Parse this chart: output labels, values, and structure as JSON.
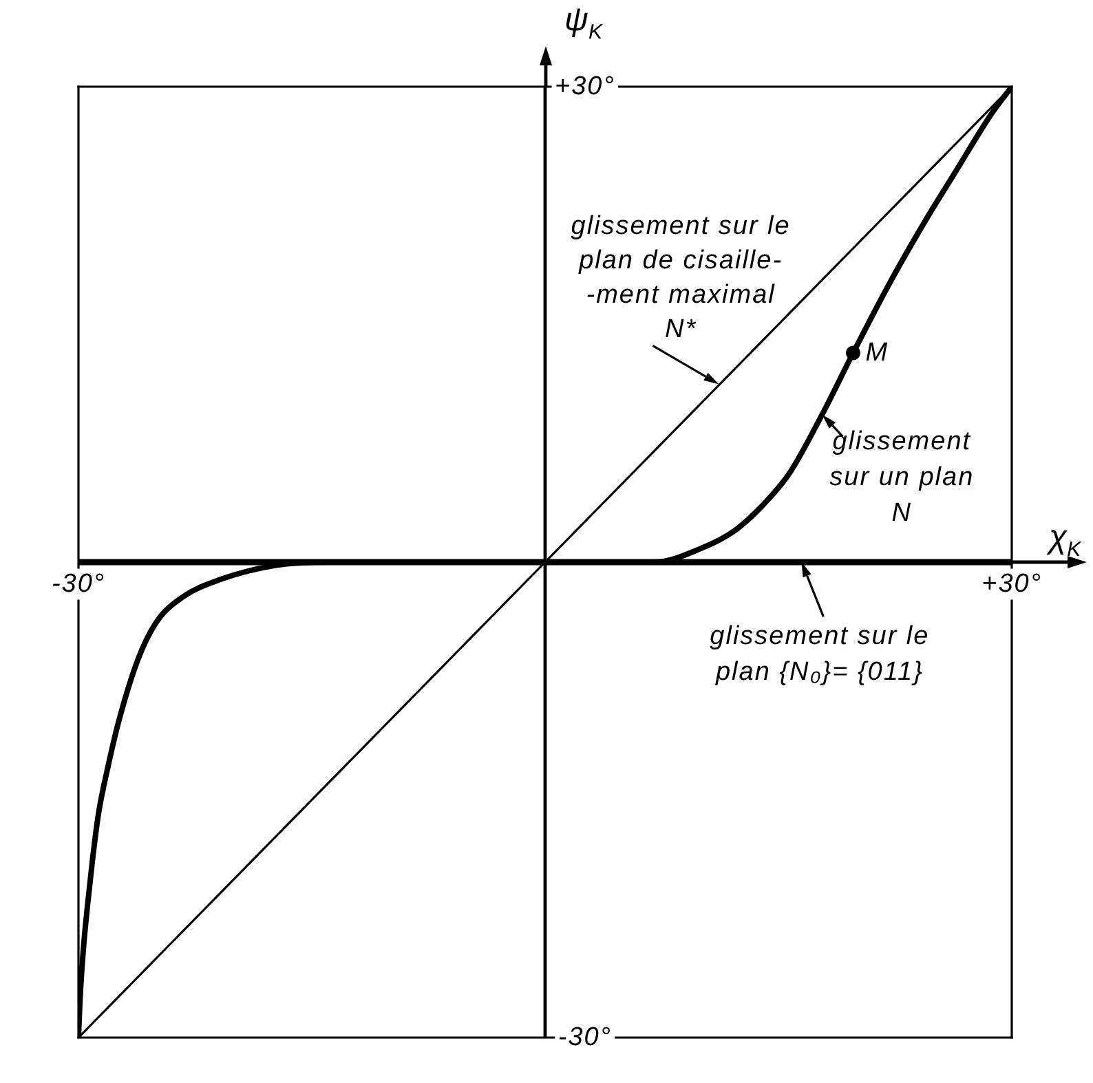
{
  "chart_data": {
    "type": "line",
    "xlabel": "χ$_{K}$",
    "ylabel": "ψ$_{K}$",
    "xlim": [
      -30,
      30
    ],
    "ylim": [
      -30,
      30
    ],
    "xticks": [
      {
        "value": -30,
        "label": "-30°"
      },
      {
        "value": 30,
        "label": "+30°"
      }
    ],
    "yticks": [
      {
        "value": -30,
        "label": "-30°"
      },
      {
        "value": 30,
        "label": "+30°"
      }
    ],
    "series": [
      {
        "type": "line",
        "color": "#000000",
        "x": [
          -30,
          30
        ],
        "values": [
          -30,
          30
        ]
      },
      {
        "type": "line",
        "color": "#000000",
        "x": [
          -30,
          -29.9,
          -29.7,
          -29.4,
          -29.1,
          -28.7,
          -28.1,
          -27.4,
          -26.2,
          -25,
          -23.3,
          -20.9,
          -17.3,
          -14,
          7,
          10.1,
          12.2,
          13.9,
          15.7,
          17.8,
          19.8,
          22.2,
          24.6,
          26.3,
          28.7,
          30
        ],
        "values": [
          -30,
          -27.6,
          -24.6,
          -21.5,
          -18.8,
          -15.8,
          -12.9,
          -10,
          -6.2,
          -3.8,
          -2.2,
          -1.1,
          -0.2,
          0,
          0,
          0.9,
          2,
          3.5,
          5.6,
          9.3,
          13.2,
          17.7,
          21.8,
          24.5,
          28.3,
          30
        ]
      },
      {
        "type": "line",
        "color": "#000000",
        "x": [
          -30,
          30
        ],
        "values": [
          0,
          0
        ]
      },
      {
        "type": "scatter",
        "color": "#000000",
        "x": [
          19.8
        ],
        "values": [
          13.2
        ],
        "marker": "circle"
      }
    ],
    "annotations": [
      {
        "text": "glissement sur le\nplan de cisaille-\n-ment maximal\nN*",
        "x": 11.2,
        "y": 11.2
      },
      {
        "text": "glissement\nsur un plan\nN",
        "x": 17.8,
        "y": 9.3
      },
      {
        "text": "glissement sur le\nplan {N₀}= {011}",
        "x": 16.5,
        "y": 0
      },
      {
        "text": "M",
        "x": 19.8,
        "y": 13.2
      }
    ]
  }
}
